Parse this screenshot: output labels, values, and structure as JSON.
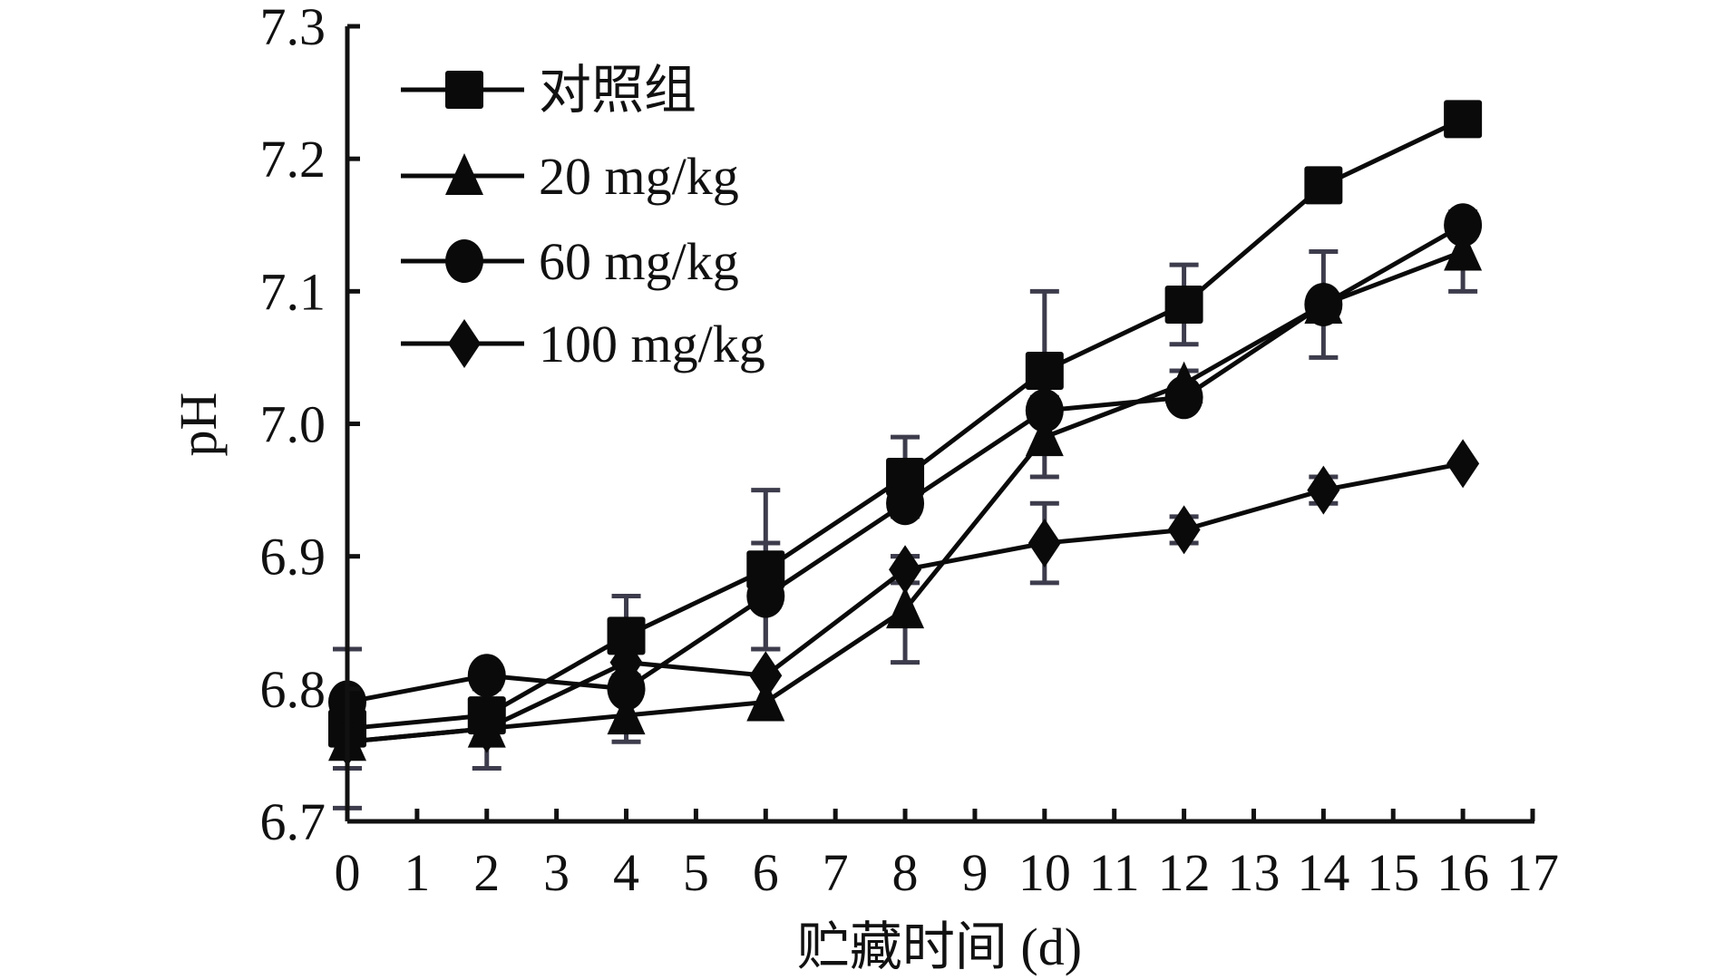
{
  "chart_data": {
    "type": "line",
    "title": "",
    "xlabel": "贮藏时间 (d)",
    "ylabel": "pH",
    "xlim": [
      0,
      17
    ],
    "ylim": [
      6.7,
      7.3
    ],
    "xticks": [
      "0",
      "1",
      "2",
      "3",
      "4",
      "5",
      "6",
      "7",
      "8",
      "9",
      "10",
      "11",
      "12",
      "13",
      "14",
      "15",
      "16",
      "17"
    ],
    "yticks": [
      "6.7",
      "6.8",
      "6.9",
      "7.0",
      "7.1",
      "7.2",
      "7.3"
    ],
    "legend_position": "top-left",
    "grid": false,
    "x": [
      0,
      2,
      4,
      6,
      8,
      10,
      12,
      14,
      16
    ],
    "series": [
      {
        "name": "对照组",
        "marker": "square",
        "values": [
          6.77,
          6.78,
          6.84,
          6.89,
          6.96,
          7.04,
          7.09,
          7.18,
          7.23
        ],
        "errors": [
          0.06,
          0.01,
          0.03,
          0.06,
          0.03,
          0.06,
          0.03,
          0.0,
          0.0
        ]
      },
      {
        "name": "20 mg/kg",
        "marker": "triangle",
        "values": [
          6.76,
          6.77,
          6.78,
          6.79,
          6.86,
          6.99,
          7.03,
          7.09,
          7.13
        ],
        "errors": [
          0.02,
          0.03,
          0.02,
          0.0,
          0.04,
          0.03,
          0.01,
          0.04,
          0.03
        ]
      },
      {
        "name": "60 mg/kg",
        "marker": "circle",
        "values": [
          6.79,
          6.81,
          6.8,
          6.87,
          6.94,
          7.01,
          7.02,
          7.09,
          7.15
        ],
        "errors": [
          0.0,
          0.0,
          0.0,
          0.04,
          0.0,
          0.0,
          0.0,
          0.0,
          0.0
        ]
      },
      {
        "name": "100 mg/kg",
        "marker": "diamond",
        "values": [
          6.76,
          6.77,
          6.82,
          6.81,
          6.89,
          6.91,
          6.92,
          6.95,
          6.97
        ],
        "errors": [
          0.0,
          0.0,
          0.0,
          0.0,
          0.01,
          0.03,
          0.01,
          0.01,
          0.0
        ]
      }
    ],
    "colors": {
      "line": "#0a0a0a",
      "errorbar": "#3c3c4c"
    }
  }
}
